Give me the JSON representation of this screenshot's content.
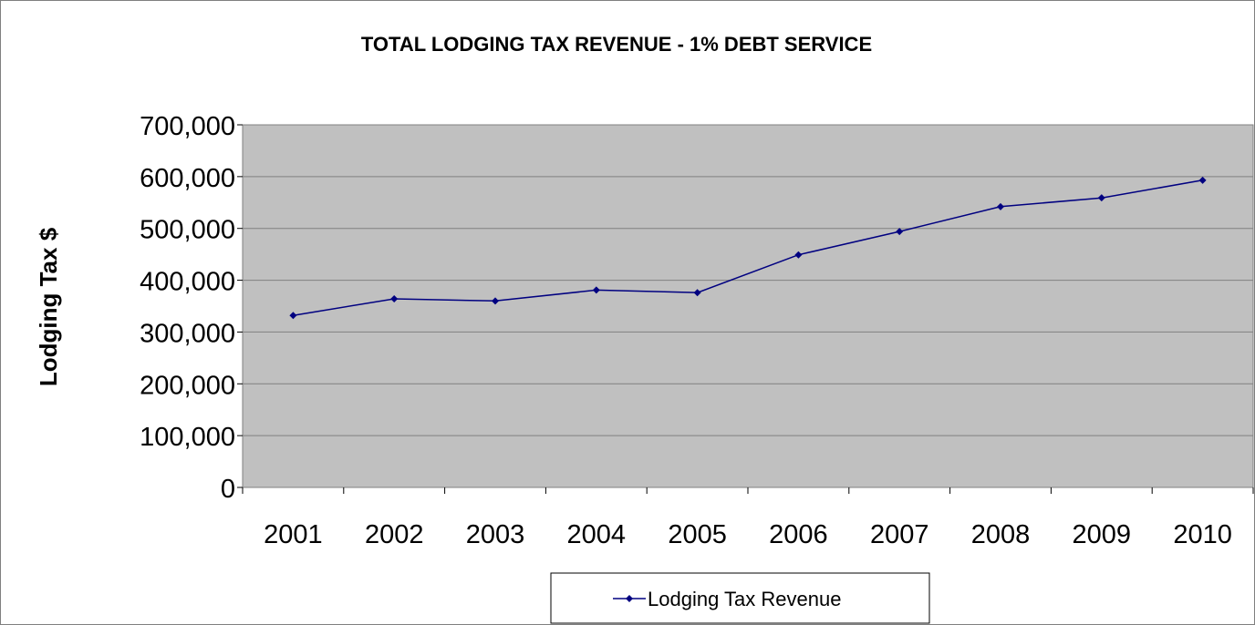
{
  "chart_data": {
    "type": "line",
    "title": "TOTAL LODGING TAX REVENUE - 1% DEBT SERVICE",
    "xlabel": "",
    "ylabel": "Lodging Tax $",
    "categories": [
      "2001",
      "2002",
      "2003",
      "2004",
      "2005",
      "2006",
      "2007",
      "2008",
      "2009",
      "2010"
    ],
    "series": [
      {
        "name": "Lodging Tax Revenue",
        "values": [
          332000,
          364000,
          360000,
          381000,
          376000,
          449000,
          494000,
          542000,
          559000,
          593000
        ],
        "color": "#000080"
      }
    ],
    "ylim": [
      0,
      700000
    ],
    "yticks": [
      "0",
      "100,000",
      "200,000",
      "300,000",
      "400,000",
      "500,000",
      "600,000",
      "700,000"
    ],
    "grid": true,
    "plot_background": "#c0c0c0",
    "legend_position": "bottom"
  }
}
